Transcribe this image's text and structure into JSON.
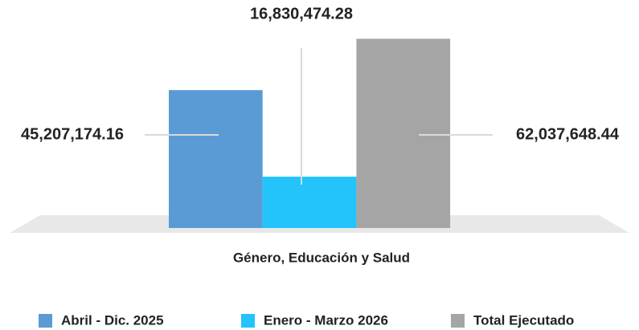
{
  "chart_data": {
    "type": "bar",
    "categories": [
      "Género, Educación y Salud"
    ],
    "series": [
      {
        "name": "Abril - Dic. 2025",
        "color": "#5b9bd5",
        "values": [
          45207174.16
        ],
        "value_labels": [
          "45,207,174.16"
        ]
      },
      {
        "name": "Enero - Marzo 2026",
        "color": "#22c4fb",
        "values": [
          16830474.28
        ],
        "value_labels": [
          "16,830,474.28"
        ]
      },
      {
        "name": "Total Ejecutado",
        "color": "#a5a5a5",
        "values": [
          62037648.44
        ],
        "value_labels": [
          "62,037,648.44"
        ]
      }
    ],
    "ylim": [
      0,
      65000000
    ],
    "legend": "bottom"
  }
}
